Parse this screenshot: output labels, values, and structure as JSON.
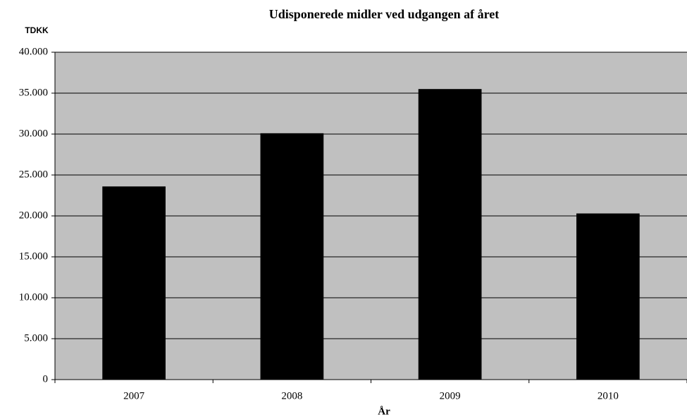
{
  "chart_data": {
    "type": "bar",
    "title": "Udisponerede midler ved udgangen af året",
    "y_axis_label": "TDKK",
    "x_axis_label": "År",
    "categories": [
      "2007",
      "2008",
      "2009",
      "2010"
    ],
    "values": [
      23600,
      30100,
      35500,
      20300
    ],
    "color": "#000000",
    "ylim": [
      0,
      40000
    ],
    "yticks": [
      0,
      {
        "value": 5000,
        "label": "5.000"
      },
      {
        "value": 10000,
        "label": "10.000"
      },
      {
        "value": 15000,
        "label": "15.000"
      },
      {
        "value": 20000,
        "label": "20.000"
      },
      {
        "value": 25000,
        "label": "25.000"
      },
      {
        "value": 30000,
        "label": "30.000"
      },
      {
        "value": 35000,
        "label": "35.000"
      },
      {
        "value": 40000,
        "label": "40.000"
      }
    ],
    "grid": true
  }
}
